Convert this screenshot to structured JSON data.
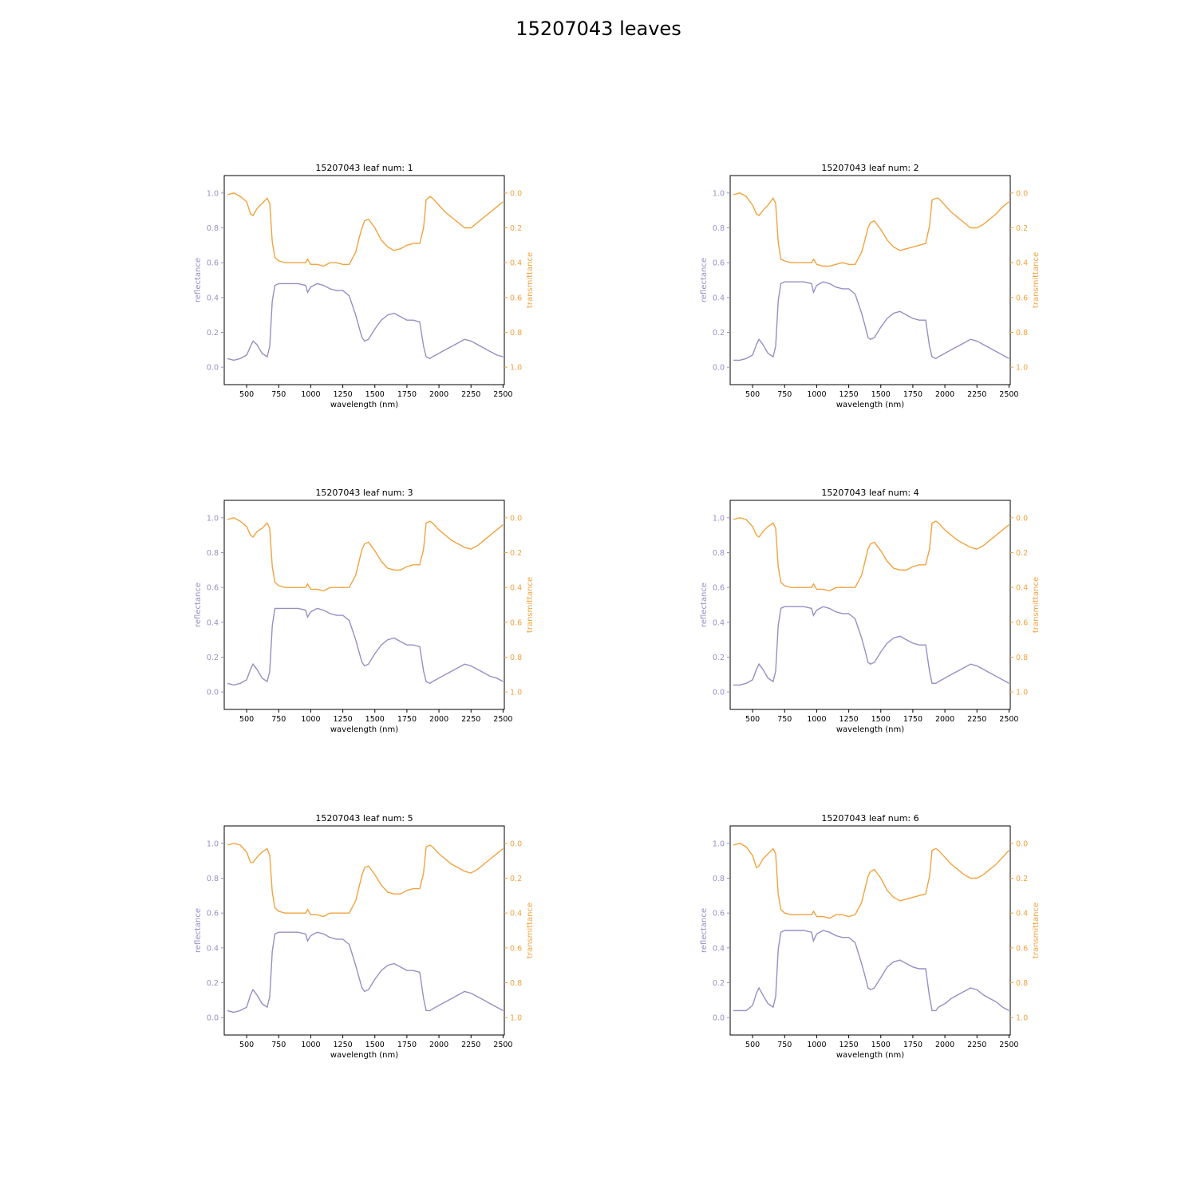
{
  "figure": {
    "title": "15207043 leaves"
  },
  "style": {
    "reflectance_color": "#998ec3",
    "transmittance_color": "#f1a340"
  },
  "axes": {
    "xlabel": "wavelength (nm)",
    "ylabel_left": "reflectance",
    "ylabel_right": "transmittance",
    "xlim": [
      325,
      2510
    ],
    "ylim_left": [
      -0.1,
      1.1
    ],
    "ylim_right": [
      1.1,
      -0.1
    ],
    "xticks": [
      500,
      750,
      1000,
      1250,
      1500,
      1750,
      2000,
      2250,
      2500
    ],
    "yticks_left": [
      0.0,
      0.2,
      0.4,
      0.6,
      0.8,
      1.0
    ],
    "yticks_right": [
      0.0,
      0.2,
      0.4,
      0.6,
      0.8,
      1.0
    ],
    "left_tick_labels": [
      "0.0",
      "0.2",
      "0.4",
      "0.6",
      "0.8",
      "1.0"
    ],
    "right_tick_labels": [
      "0.0",
      "0.2",
      "0.4",
      "0.6",
      "0.8",
      "1.0"
    ],
    "x_tick_labels": [
      "500",
      "750",
      "1000",
      "1250",
      "1500",
      "1750",
      "2000",
      "2250",
      "2500"
    ]
  },
  "chart_data": [
    {
      "type": "line",
      "title": "15207043 leaf num: 1",
      "x": [
        350,
        400,
        450,
        500,
        530,
        550,
        580,
        620,
        660,
        680,
        700,
        720,
        750,
        800,
        900,
        960,
        975,
        1000,
        1050,
        1100,
        1150,
        1200,
        1250,
        1300,
        1350,
        1380,
        1400,
        1420,
        1450,
        1500,
        1550,
        1600,
        1650,
        1700,
        1750,
        1800,
        1850,
        1880,
        1900,
        1930,
        1950,
        2000,
        2050,
        2100,
        2150,
        2200,
        2250,
        2300,
        2350,
        2400,
        2450,
        2500
      ],
      "series": [
        {
          "name": "reflectance",
          "values": [
            0.05,
            0.04,
            0.05,
            0.07,
            0.12,
            0.15,
            0.13,
            0.08,
            0.06,
            0.12,
            0.38,
            0.47,
            0.48,
            0.48,
            0.48,
            0.47,
            0.43,
            0.46,
            0.48,
            0.47,
            0.45,
            0.44,
            0.44,
            0.41,
            0.3,
            0.22,
            0.17,
            0.15,
            0.16,
            0.22,
            0.27,
            0.3,
            0.31,
            0.29,
            0.27,
            0.27,
            0.26,
            0.12,
            0.06,
            0.05,
            0.06,
            0.08,
            0.1,
            0.12,
            0.14,
            0.16,
            0.15,
            0.13,
            0.11,
            0.09,
            0.07,
            0.06
          ]
        },
        {
          "name": "transmittance",
          "values": [
            0.01,
            0.0,
            0.02,
            0.05,
            0.12,
            0.13,
            0.09,
            0.06,
            0.03,
            0.06,
            0.28,
            0.37,
            0.39,
            0.4,
            0.4,
            0.4,
            0.38,
            0.41,
            0.41,
            0.42,
            0.4,
            0.4,
            0.41,
            0.41,
            0.34,
            0.25,
            0.2,
            0.16,
            0.15,
            0.2,
            0.27,
            0.31,
            0.33,
            0.32,
            0.3,
            0.29,
            0.29,
            0.2,
            0.04,
            0.02,
            0.03,
            0.07,
            0.11,
            0.14,
            0.17,
            0.2,
            0.2,
            0.17,
            0.14,
            0.11,
            0.08,
            0.05
          ]
        }
      ]
    },
    {
      "type": "line",
      "title": "15207043 leaf num: 2",
      "x": [
        350,
        400,
        450,
        500,
        530,
        550,
        580,
        620,
        660,
        680,
        700,
        720,
        750,
        800,
        900,
        960,
        975,
        1000,
        1050,
        1100,
        1150,
        1200,
        1250,
        1300,
        1350,
        1380,
        1400,
        1420,
        1450,
        1500,
        1550,
        1600,
        1650,
        1700,
        1750,
        1800,
        1850,
        1880,
        1900,
        1930,
        1950,
        2000,
        2050,
        2100,
        2150,
        2200,
        2250,
        2300,
        2350,
        2400,
        2450,
        2500
      ],
      "series": [
        {
          "name": "reflectance",
          "values": [
            0.04,
            0.04,
            0.05,
            0.07,
            0.13,
            0.16,
            0.13,
            0.08,
            0.06,
            0.12,
            0.38,
            0.48,
            0.49,
            0.49,
            0.49,
            0.48,
            0.43,
            0.47,
            0.49,
            0.48,
            0.46,
            0.45,
            0.45,
            0.42,
            0.31,
            0.23,
            0.17,
            0.16,
            0.17,
            0.23,
            0.28,
            0.31,
            0.32,
            0.3,
            0.28,
            0.27,
            0.27,
            0.12,
            0.06,
            0.05,
            0.06,
            0.08,
            0.1,
            0.12,
            0.14,
            0.16,
            0.15,
            0.13,
            0.11,
            0.09,
            0.07,
            0.05
          ]
        },
        {
          "name": "transmittance",
          "values": [
            0.01,
            0.0,
            0.02,
            0.07,
            0.12,
            0.13,
            0.1,
            0.07,
            0.03,
            0.06,
            0.28,
            0.38,
            0.39,
            0.4,
            0.4,
            0.4,
            0.38,
            0.41,
            0.42,
            0.42,
            0.41,
            0.4,
            0.41,
            0.41,
            0.34,
            0.26,
            0.2,
            0.17,
            0.16,
            0.21,
            0.27,
            0.31,
            0.33,
            0.32,
            0.31,
            0.3,
            0.29,
            0.19,
            0.04,
            0.03,
            0.03,
            0.07,
            0.11,
            0.14,
            0.17,
            0.2,
            0.2,
            0.18,
            0.15,
            0.12,
            0.08,
            0.05
          ]
        }
      ]
    },
    {
      "type": "line",
      "title": "15207043 leaf num: 3",
      "x": [
        350,
        400,
        450,
        500,
        530,
        550,
        580,
        620,
        660,
        680,
        700,
        720,
        750,
        800,
        900,
        960,
        975,
        1000,
        1050,
        1100,
        1150,
        1200,
        1250,
        1300,
        1350,
        1380,
        1400,
        1420,
        1450,
        1500,
        1550,
        1600,
        1650,
        1700,
        1750,
        1800,
        1850,
        1880,
        1900,
        1930,
        1950,
        2000,
        2050,
        2100,
        2150,
        2200,
        2250,
        2300,
        2350,
        2400,
        2450,
        2500
      ],
      "series": [
        {
          "name": "reflectance",
          "values": [
            0.05,
            0.04,
            0.05,
            0.07,
            0.13,
            0.16,
            0.13,
            0.08,
            0.06,
            0.12,
            0.38,
            0.48,
            0.48,
            0.48,
            0.48,
            0.47,
            0.43,
            0.46,
            0.48,
            0.47,
            0.45,
            0.44,
            0.44,
            0.41,
            0.3,
            0.22,
            0.17,
            0.15,
            0.16,
            0.22,
            0.27,
            0.3,
            0.31,
            0.29,
            0.27,
            0.27,
            0.26,
            0.12,
            0.06,
            0.05,
            0.06,
            0.08,
            0.1,
            0.12,
            0.14,
            0.16,
            0.15,
            0.13,
            0.11,
            0.09,
            0.08,
            0.06
          ]
        },
        {
          "name": "transmittance",
          "values": [
            0.01,
            0.0,
            0.02,
            0.05,
            0.1,
            0.11,
            0.08,
            0.06,
            0.03,
            0.06,
            0.28,
            0.37,
            0.39,
            0.4,
            0.4,
            0.4,
            0.38,
            0.41,
            0.41,
            0.42,
            0.4,
            0.4,
            0.4,
            0.4,
            0.33,
            0.24,
            0.18,
            0.15,
            0.14,
            0.19,
            0.25,
            0.29,
            0.3,
            0.3,
            0.28,
            0.27,
            0.27,
            0.18,
            0.03,
            0.02,
            0.03,
            0.07,
            0.1,
            0.13,
            0.15,
            0.17,
            0.18,
            0.16,
            0.13,
            0.1,
            0.07,
            0.04
          ]
        }
      ]
    },
    {
      "type": "line",
      "title": "15207043 leaf num: 4",
      "x": [
        350,
        400,
        450,
        500,
        530,
        550,
        580,
        620,
        660,
        680,
        700,
        720,
        750,
        800,
        900,
        960,
        975,
        1000,
        1050,
        1100,
        1150,
        1200,
        1250,
        1300,
        1350,
        1380,
        1400,
        1420,
        1450,
        1500,
        1550,
        1600,
        1650,
        1700,
        1750,
        1800,
        1850,
        1880,
        1900,
        1930,
        1950,
        2000,
        2050,
        2100,
        2150,
        2200,
        2250,
        2300,
        2350,
        2400,
        2450,
        2500
      ],
      "series": [
        {
          "name": "reflectance",
          "values": [
            0.04,
            0.04,
            0.05,
            0.07,
            0.13,
            0.16,
            0.13,
            0.08,
            0.06,
            0.12,
            0.38,
            0.48,
            0.49,
            0.49,
            0.49,
            0.48,
            0.44,
            0.47,
            0.49,
            0.48,
            0.46,
            0.45,
            0.45,
            0.42,
            0.31,
            0.23,
            0.17,
            0.16,
            0.17,
            0.23,
            0.28,
            0.31,
            0.32,
            0.3,
            0.28,
            0.27,
            0.27,
            0.12,
            0.05,
            0.05,
            0.06,
            0.08,
            0.1,
            0.12,
            0.14,
            0.16,
            0.15,
            0.13,
            0.11,
            0.09,
            0.07,
            0.05
          ]
        },
        {
          "name": "transmittance",
          "values": [
            0.01,
            0.0,
            0.01,
            0.05,
            0.1,
            0.11,
            0.08,
            0.05,
            0.03,
            0.06,
            0.28,
            0.37,
            0.39,
            0.4,
            0.4,
            0.4,
            0.38,
            0.41,
            0.41,
            0.42,
            0.4,
            0.4,
            0.4,
            0.4,
            0.33,
            0.24,
            0.18,
            0.15,
            0.14,
            0.19,
            0.25,
            0.29,
            0.3,
            0.3,
            0.28,
            0.27,
            0.27,
            0.18,
            0.03,
            0.02,
            0.03,
            0.07,
            0.1,
            0.13,
            0.15,
            0.17,
            0.18,
            0.16,
            0.13,
            0.1,
            0.07,
            0.04
          ]
        }
      ]
    },
    {
      "type": "line",
      "title": "15207043 leaf num: 5",
      "x": [
        350,
        400,
        450,
        500,
        530,
        550,
        580,
        620,
        660,
        680,
        700,
        720,
        750,
        800,
        900,
        960,
        975,
        1000,
        1050,
        1100,
        1150,
        1200,
        1250,
        1300,
        1350,
        1380,
        1400,
        1420,
        1450,
        1500,
        1550,
        1600,
        1650,
        1700,
        1750,
        1800,
        1850,
        1880,
        1900,
        1930,
        1950,
        2000,
        2050,
        2100,
        2150,
        2200,
        2250,
        2300,
        2350,
        2400,
        2450,
        2500
      ],
      "series": [
        {
          "name": "reflectance",
          "values": [
            0.04,
            0.03,
            0.04,
            0.06,
            0.13,
            0.16,
            0.13,
            0.08,
            0.06,
            0.12,
            0.38,
            0.48,
            0.49,
            0.49,
            0.49,
            0.48,
            0.44,
            0.47,
            0.49,
            0.48,
            0.46,
            0.45,
            0.45,
            0.42,
            0.3,
            0.22,
            0.17,
            0.15,
            0.16,
            0.22,
            0.27,
            0.3,
            0.31,
            0.29,
            0.27,
            0.27,
            0.26,
            0.11,
            0.04,
            0.04,
            0.05,
            0.07,
            0.09,
            0.11,
            0.13,
            0.15,
            0.14,
            0.12,
            0.1,
            0.08,
            0.06,
            0.04
          ]
        },
        {
          "name": "transmittance",
          "values": [
            0.01,
            0.0,
            0.01,
            0.05,
            0.11,
            0.11,
            0.08,
            0.05,
            0.03,
            0.07,
            0.28,
            0.37,
            0.39,
            0.4,
            0.4,
            0.4,
            0.38,
            0.41,
            0.41,
            0.42,
            0.4,
            0.4,
            0.4,
            0.4,
            0.33,
            0.24,
            0.18,
            0.14,
            0.13,
            0.18,
            0.24,
            0.28,
            0.29,
            0.29,
            0.27,
            0.26,
            0.26,
            0.17,
            0.02,
            0.01,
            0.02,
            0.06,
            0.09,
            0.12,
            0.14,
            0.16,
            0.17,
            0.15,
            0.12,
            0.09,
            0.06,
            0.03
          ]
        }
      ]
    },
    {
      "type": "line",
      "title": "15207043 leaf num: 6",
      "x": [
        350,
        400,
        450,
        500,
        530,
        550,
        580,
        620,
        660,
        680,
        700,
        720,
        750,
        800,
        900,
        960,
        975,
        1000,
        1050,
        1100,
        1150,
        1200,
        1250,
        1300,
        1350,
        1380,
        1400,
        1420,
        1450,
        1500,
        1550,
        1600,
        1650,
        1700,
        1750,
        1800,
        1850,
        1880,
        1900,
        1930,
        1950,
        2000,
        2050,
        2100,
        2150,
        2200,
        2250,
        2300,
        2350,
        2400,
        2450,
        2500
      ],
      "series": [
        {
          "name": "reflectance",
          "values": [
            0.04,
            0.04,
            0.04,
            0.07,
            0.14,
            0.17,
            0.13,
            0.08,
            0.06,
            0.12,
            0.39,
            0.49,
            0.5,
            0.5,
            0.5,
            0.49,
            0.44,
            0.48,
            0.5,
            0.49,
            0.47,
            0.46,
            0.46,
            0.43,
            0.31,
            0.23,
            0.17,
            0.16,
            0.17,
            0.23,
            0.29,
            0.32,
            0.33,
            0.31,
            0.29,
            0.28,
            0.28,
            0.12,
            0.04,
            0.04,
            0.06,
            0.08,
            0.11,
            0.13,
            0.15,
            0.17,
            0.16,
            0.13,
            0.11,
            0.09,
            0.06,
            0.04
          ]
        },
        {
          "name": "transmittance",
          "values": [
            0.01,
            0.0,
            0.02,
            0.07,
            0.14,
            0.13,
            0.09,
            0.06,
            0.03,
            0.06,
            0.29,
            0.38,
            0.4,
            0.41,
            0.41,
            0.41,
            0.39,
            0.42,
            0.42,
            0.43,
            0.41,
            0.41,
            0.42,
            0.41,
            0.34,
            0.25,
            0.19,
            0.16,
            0.15,
            0.2,
            0.27,
            0.31,
            0.33,
            0.32,
            0.31,
            0.3,
            0.29,
            0.19,
            0.04,
            0.03,
            0.04,
            0.08,
            0.12,
            0.15,
            0.18,
            0.2,
            0.2,
            0.18,
            0.15,
            0.12,
            0.08,
            0.04
          ]
        }
      ]
    }
  ]
}
